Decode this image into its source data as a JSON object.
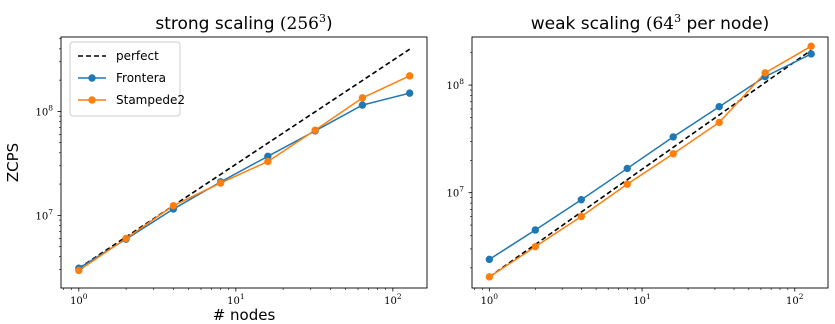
{
  "chart_data": [
    {
      "type": "line",
      "title_text": "strong scaling",
      "title_math": "(256",
      "title_sup": "3",
      "title_close": ")",
      "xlabel": "# nodes",
      "ylabel": "ZCPS",
      "xscale": "log",
      "yscale": "log",
      "xlim": [
        0.77,
        165
      ],
      "ylim": [
        2000000,
        520000000
      ],
      "x_ticks": [
        1,
        10,
        100
      ],
      "x_tick_base": [
        "10",
        "10",
        "10"
      ],
      "x_tick_exp": [
        "0",
        "1",
        "2"
      ],
      "y_ticks": [
        10000000,
        100000000
      ],
      "y_tick_base": [
        "10",
        "10"
      ],
      "y_tick_exp": [
        "7",
        "8"
      ],
      "grid": false,
      "legend_position": "top-left",
      "x": [
        1,
        2,
        4,
        8,
        16,
        32,
        64,
        128
      ],
      "series": [
        {
          "name": "perfect",
          "color": "#000000",
          "style": "dashed",
          "marker": "none",
          "values": [
            3100000,
            6200000,
            12400000,
            24800000,
            49600000,
            99200000,
            198400000,
            396800000
          ]
        },
        {
          "name": "Frontera",
          "color": "#1f77b4",
          "style": "solid",
          "marker": "circle",
          "values": [
            3100000,
            5900000,
            11500000,
            21000000,
            37000000,
            65000000,
            115000000,
            150000000
          ]
        },
        {
          "name": "Stampede2",
          "color": "#ff7f0e",
          "style": "solid",
          "marker": "circle",
          "values": [
            2950000,
            6000000,
            12400000,
            20500000,
            33000000,
            66000000,
            135000000,
            220000000
          ]
        }
      ]
    },
    {
      "type": "line",
      "title_text": "weak scaling",
      "title_math": "(64",
      "title_sup": "3",
      "title_close": " per node)",
      "xlabel": "",
      "ylabel": "",
      "xscale": "log",
      "yscale": "log",
      "xlim": [
        0.77,
        165
      ],
      "ylim": [
        1300000,
        280000000
      ],
      "x_ticks": [
        1,
        10,
        100
      ],
      "x_tick_base": [
        "10",
        "10",
        "10"
      ],
      "x_tick_exp": [
        "0",
        "1",
        "2"
      ],
      "y_ticks": [
        10000000,
        100000000
      ],
      "y_tick_base": [
        "10",
        "10"
      ],
      "y_tick_exp": [
        "7",
        "8"
      ],
      "grid": false,
      "x": [
        1,
        2,
        4,
        8,
        16,
        32,
        64,
        128
      ],
      "series": [
        {
          "name": "perfect",
          "color": "#000000",
          "style": "dashed",
          "marker": "none",
          "values": [
            1650000,
            3300000,
            6600000,
            13200000,
            26400000,
            52800000,
            105600000,
            211200000
          ]
        },
        {
          "name": "Frontera",
          "color": "#1f77b4",
          "style": "solid",
          "marker": "circle",
          "values": [
            2400000,
            4500000,
            8600000,
            16800000,
            33000000,
            63000000,
            120000000,
            195000000
          ]
        },
        {
          "name": "Stampede2",
          "color": "#ff7f0e",
          "style": "solid",
          "marker": "circle",
          "values": [
            1650000,
            3150000,
            6000000,
            12000000,
            23000000,
            45000000,
            130000000,
            230000000
          ]
        }
      ]
    }
  ]
}
